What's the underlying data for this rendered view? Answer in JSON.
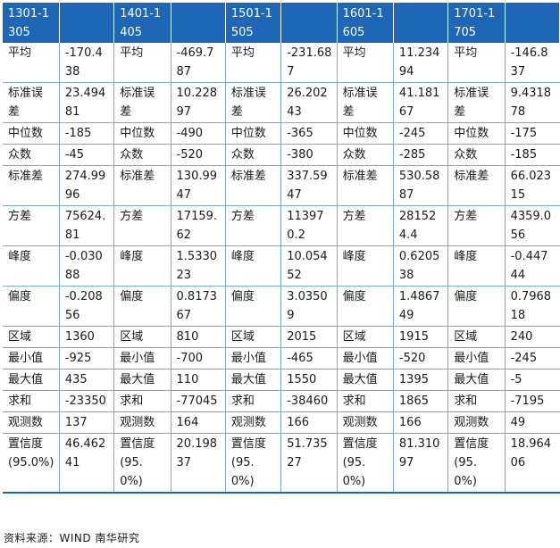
{
  "header": {
    "periods": [
      "1301-1305",
      "1401-1405",
      "1501-1505",
      "1601-1605",
      "1701-1705"
    ],
    "wrapped": [
      [
        "1301-1",
        "305"
      ],
      [
        "1401-1",
        "405"
      ],
      [
        "1501-1",
        "505"
      ],
      [
        "1601-1",
        "605"
      ],
      [
        "1701-1",
        "705"
      ]
    ]
  },
  "rows": [
    {
      "label": "平均",
      "values": [
        "-170.438",
        "-469.787",
        "-231.687",
        "11.23494",
        "-146.837"
      ]
    },
    {
      "label": "标准误差",
      "values": [
        "23.49481",
        "10.22897",
        "26.20243",
        "41.18167",
        "9.431878"
      ]
    },
    {
      "label": "中位数",
      "values": [
        "-185",
        "-490",
        "-365",
        "-245",
        "-175"
      ]
    },
    {
      "label": "众数",
      "values": [
        "-45",
        "-520",
        "-380",
        "-285",
        "-185"
      ]
    },
    {
      "label": "标准差",
      "values": [
        "274.9996",
        "130.9947",
        "337.5947",
        "530.5887",
        "66.02315"
      ]
    },
    {
      "label": "方差",
      "values": [
        "75624.81",
        "17159.62",
        "113970.2",
        "281524.4",
        "4359.056"
      ]
    },
    {
      "label": "峰度",
      "values": [
        "-0.03088",
        "1.533023",
        "10.05452",
        "0.620538",
        "-0.44744"
      ]
    },
    {
      "label": "偏度",
      "values": [
        "-0.20856",
        "0.817367",
        "3.03509",
        "1.486749",
        "0.796818"
      ]
    },
    {
      "label": "区域",
      "values": [
        "1360",
        "810",
        "2015",
        "1915",
        "240"
      ]
    },
    {
      "label": "最小值",
      "values": [
        "-925",
        "-700",
        "-465",
        "-520",
        "-245"
      ]
    },
    {
      "label": "最大值",
      "values": [
        "435",
        "110",
        "1550",
        "1395",
        "-5"
      ]
    },
    {
      "label": "求和",
      "values": [
        "-23350",
        "-77045",
        "-38460",
        "1865",
        "-7195"
      ]
    },
    {
      "label": "观测数",
      "values": [
        "137",
        "164",
        "166",
        "166",
        "49"
      ]
    },
    {
      "label": "置信度(95.0%)",
      "values": [
        "46.46241",
        "20.19837",
        "51.73527",
        "81.31097",
        "18.96406"
      ]
    }
  ],
  "source": "资料来源：WIND 南华研究"
}
